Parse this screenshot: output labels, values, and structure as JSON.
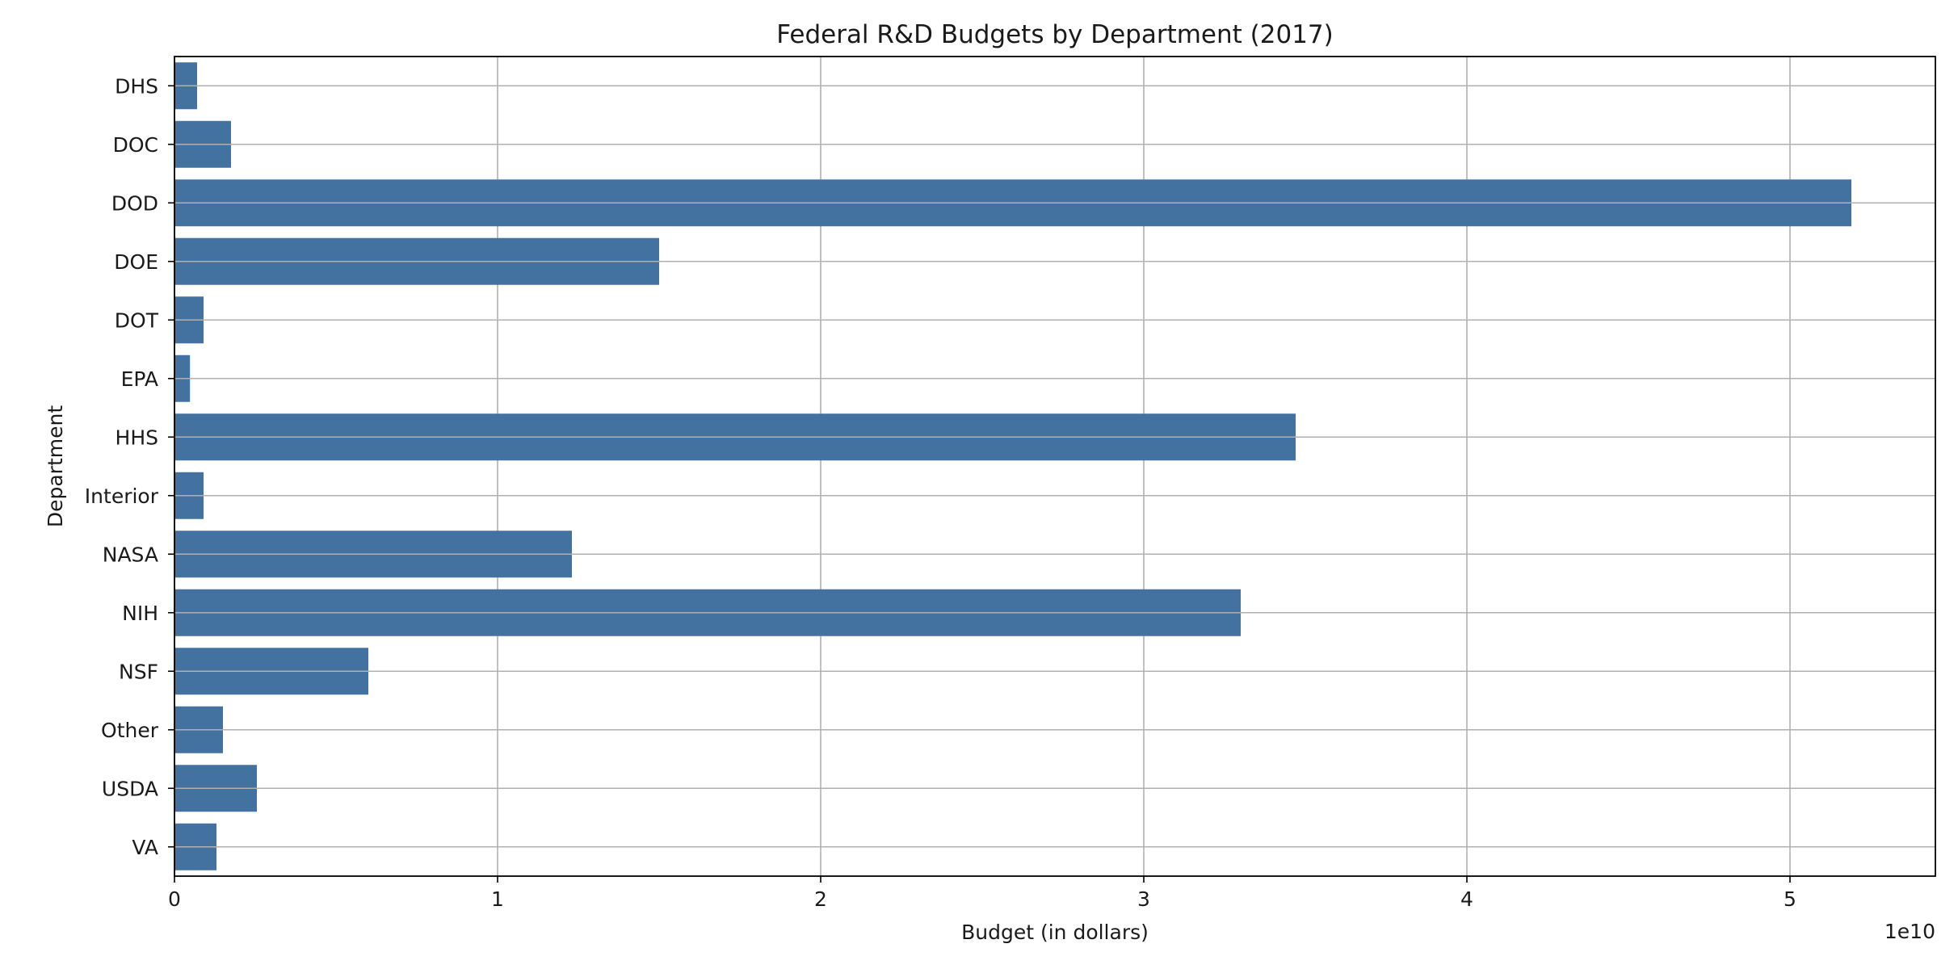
{
  "chart_data": {
    "type": "bar",
    "orientation": "horizontal",
    "title": "Federal R&D Budgets by Department (2017)",
    "xlabel": "Budget (in dollars)",
    "ylabel": "Department",
    "x_offset_label": "1e10",
    "xlim": [
      0,
      54500000000
    ],
    "xticks": [
      0,
      10000000000,
      20000000000,
      30000000000,
      40000000000,
      50000000000
    ],
    "xtick_labels": [
      "0",
      "1",
      "2",
      "3",
      "4",
      "5"
    ],
    "grid": true,
    "bar_color": "#4472a0",
    "categories": [
      "DHS",
      "DOC",
      "DOD",
      "DOE",
      "DOT",
      "EPA",
      "HHS",
      "Interior",
      "NASA",
      "NIH",
      "NSF",
      "Other",
      "USDA",
      "VA"
    ],
    "values": [
      700000000,
      1750000000,
      51900000000,
      15000000000,
      900000000,
      480000000,
      34700000000,
      900000000,
      12300000000,
      33000000000,
      6000000000,
      1500000000,
      2550000000,
      1300000000
    ]
  }
}
